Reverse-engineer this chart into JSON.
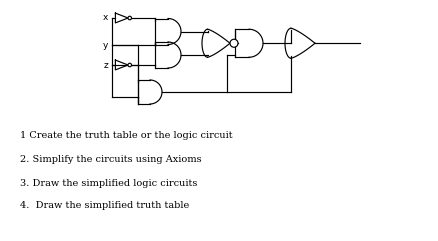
{
  "background": "#ffffff",
  "text_color": "#000000",
  "instructions": [
    "1 Create the truth table or the logic circuit",
    "2. Simplify the circuits using Axioms",
    "3. Draw the simplified logic circuits",
    "4.  Draw the simplified truth table"
  ],
  "lw": 0.85
}
